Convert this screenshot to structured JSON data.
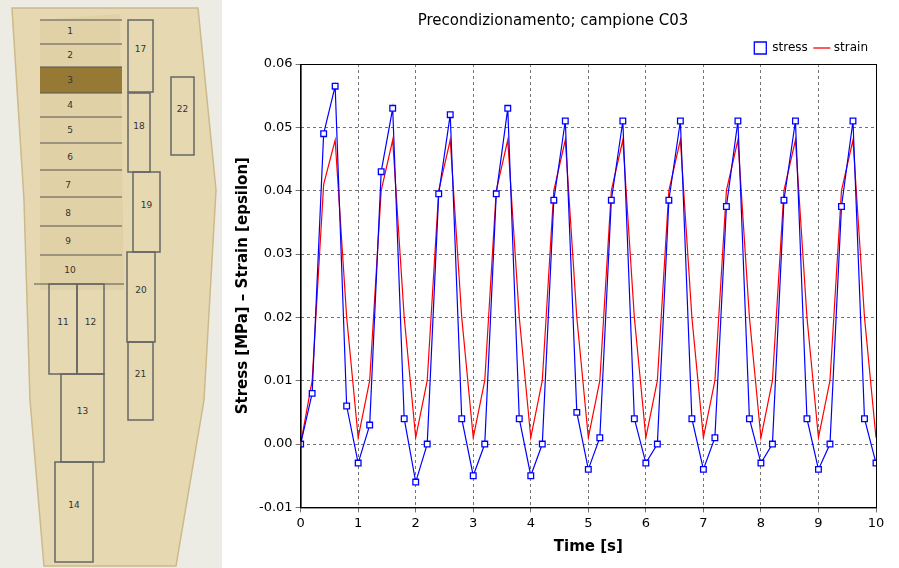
{
  "specimen": {
    "labels": [
      "1",
      "2",
      "3",
      "4",
      "5",
      "6",
      "7",
      "8",
      "9",
      "10",
      "11",
      "12",
      "13",
      "14",
      "17",
      "18",
      "19",
      "20",
      "21",
      "22"
    ],
    "highlighted": "3"
  },
  "chart_data": {
    "type": "line",
    "title": "Precondizionamento; campione C03",
    "x_label": "Time [s]",
    "y_label": "Stress [MPa] – Strain [epsilon]",
    "x": [
      0,
      0.2,
      0.4,
      0.6,
      0.8,
      1,
      1.2,
      1.4,
      1.6,
      1.8,
      2,
      2.2,
      2.4,
      2.6,
      2.8,
      3,
      3.2,
      3.4,
      3.6,
      3.8,
      4,
      4.2,
      4.4,
      4.6,
      4.8,
      5,
      5.2,
      5.4,
      5.6,
      5.8,
      6,
      6.2,
      6.4,
      6.6,
      6.8,
      7,
      7.2,
      7.4,
      7.6,
      7.8,
      8,
      8.2,
      8.4,
      8.6,
      8.8,
      9,
      9.2,
      9.4,
      9.6,
      9.8,
      10
    ],
    "series": [
      {
        "name": "stress",
        "color": "#0000ff",
        "marker": "square",
        "line_style": "solid",
        "values": [
          0,
          0.008,
          0.049,
          0.0565,
          0.006,
          -0.003,
          0.003,
          0.043,
          0.053,
          0.004,
          -0.006,
          0,
          0.0395,
          0.052,
          0.004,
          -0.005,
          0,
          0.0395,
          0.053,
          0.004,
          -0.005,
          0,
          0.0385,
          0.051,
          0.005,
          -0.004,
          0.001,
          0.0385,
          0.051,
          0.004,
          -0.003,
          0,
          0.0385,
          0.051,
          0.004,
          -0.004,
          0.001,
          0.0375,
          0.051,
          0.004,
          -0.003,
          0,
          0.0385,
          0.051,
          0.004,
          -0.004,
          0,
          0.0375,
          0.051,
          0.004,
          -0.003
        ]
      },
      {
        "name": "strain",
        "color": "#ff0000",
        "marker": "none",
        "line_style": "solid",
        "values": [
          0,
          0.01,
          0.041,
          0.048,
          0.02,
          0.001,
          0.01,
          0.04,
          0.048,
          0.02,
          0.001,
          0.01,
          0.04,
          0.048,
          0.02,
          0.001,
          0.01,
          0.04,
          0.048,
          0.02,
          0.001,
          0.01,
          0.04,
          0.048,
          0.02,
          0.001,
          0.01,
          0.04,
          0.048,
          0.02,
          0.001,
          0.01,
          0.04,
          0.048,
          0.02,
          0.001,
          0.01,
          0.04,
          0.048,
          0.02,
          0.001,
          0.01,
          0.04,
          0.048,
          0.02,
          0.001,
          0.01,
          0.04,
          0.048,
          0.02,
          0.001
        ]
      }
    ],
    "xlim": [
      0,
      10
    ],
    "xticks": [
      0,
      1,
      2,
      3,
      4,
      5,
      6,
      7,
      8,
      9,
      10
    ],
    "ylim": [
      -0.01,
      0.06
    ],
    "yticks": [
      -0.01,
      {
        "value": 0,
        "label": "0.00"
      },
      0.01,
      0.02,
      0.03,
      0.04,
      0.05,
      0.06
    ],
    "grid": true,
    "legend": "upper right"
  }
}
